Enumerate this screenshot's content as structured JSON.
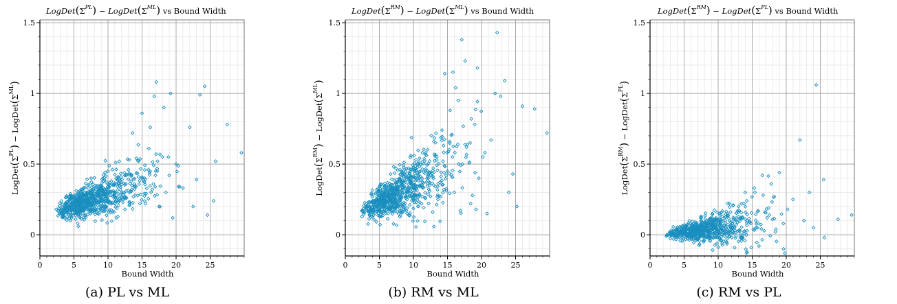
{
  "panels": [
    {
      "title_parts": [
        "LogDet",
        "(",
        "Σ",
        "PL",
        ")",
        " − ",
        "LogDet",
        "(",
        "Σ",
        "ML",
        ")",
        " vs Bound  Width"
      ],
      "ylabel_parts": [
        "LogDet",
        "(",
        "Σ",
        "PL",
        ")",
        " − ",
        "LogDet",
        "(",
        "Σ",
        "ML",
        ")"
      ],
      "xlabel": "Bound Width",
      "caption": "(a) PL vs ML"
    },
    {
      "title_parts": [
        "LogDet",
        "(",
        "Σ",
        "RM",
        ")",
        " − ",
        "LogDet",
        "(",
        "Σ",
        "ML",
        ")",
        " vs Bound  Width"
      ],
      "ylabel_parts": [
        "LogDet",
        "(",
        "Σ",
        "RM",
        ")",
        " − ",
        "LogDet",
        "(",
        "Σ",
        "ML",
        ")"
      ],
      "xlabel": "Bound Width",
      "caption": "(b) RM vs ML"
    },
    {
      "title_parts": [
        "LogDet",
        "(",
        "Σ",
        "RM",
        ")",
        " − ",
        "LogDet",
        "(",
        "Σ",
        "PL",
        ")",
        " vs Bound  Width"
      ],
      "ylabel_parts": [
        "LogDet",
        "(",
        "Σ",
        "RM",
        ")",
        " − ",
        "LogDet",
        "(",
        "Σ",
        "PL",
        ")"
      ],
      "xlabel": "Bound Width",
      "caption": "(c) RM vs PL"
    }
  ],
  "chart_data": [
    {
      "type": "scatter",
      "xlabel": "Bound Width",
      "xlim": [
        0,
        30
      ],
      "ylim": [
        -0.15,
        1.52
      ],
      "xticks": [
        0,
        5,
        10,
        15,
        20,
        25
      ],
      "yticks": [
        0,
        0.5,
        1,
        1.5
      ],
      "grid": true,
      "marker_color": "#1a8fbf",
      "series": [
        {
          "values": [
            [
              2.4,
              0.18
            ],
            [
              3.1,
              0.15
            ],
            [
              3.8,
              0.2
            ],
            [
              4.5,
              0.19
            ],
            [
              5,
              0.25
            ],
            [
              5.4,
              0.16
            ],
            [
              6,
              0.22
            ],
            [
              6.5,
              0.28
            ],
            [
              7,
              0.2
            ],
            [
              7.5,
              0.31
            ],
            [
              8,
              0.24
            ],
            [
              8.5,
              0.15
            ],
            [
              9,
              0.33
            ],
            [
              9.4,
              0.2
            ],
            [
              10,
              0.27
            ],
            [
              10.5,
              0.38
            ],
            [
              11,
              0.22
            ],
            [
              11.5,
              0.41
            ],
            [
              12,
              0.3
            ],
            [
              12.5,
              0.18
            ],
            [
              13,
              0.46
            ],
            [
              13.5,
              0.35
            ],
            [
              14,
              0.28
            ],
            [
              14.5,
              0.52
            ],
            [
              15,
              0.4
            ],
            [
              15.5,
              0.22
            ],
            [
              16,
              0.61
            ],
            [
              16.5,
              0.32
            ],
            [
              17,
              0.45
            ],
            [
              17.5,
              0.2
            ],
            [
              18,
              0.55
            ],
            [
              18.5,
              0.3
            ],
            [
              19,
              0.42
            ],
            [
              19.5,
              0.12
            ],
            [
              20,
              0.5
            ],
            [
              21,
              0.33
            ],
            [
              22,
              0.76
            ],
            [
              22.5,
              0.2
            ],
            [
              23,
              0.39
            ],
            [
              23.5,
              0.99
            ],
            [
              24.2,
              1.05
            ],
            [
              24.6,
              0.14
            ],
            [
              25.5,
              0.24
            ],
            [
              25.8,
              0.52
            ],
            [
              27.5,
              0.78
            ],
            [
              29.6,
              0.58
            ],
            [
              17.1,
              1.08
            ],
            [
              19.2,
              1.0
            ],
            [
              15,
              0.86
            ],
            [
              16.8,
              0.98
            ],
            [
              13.6,
              0.72
            ],
            [
              18.2,
              0.9
            ]
          ]
        }
      ]
    },
    {
      "type": "scatter",
      "xlabel": "Bound Width",
      "xlim": [
        0,
        30
      ],
      "ylim": [
        -0.15,
        1.52
      ],
      "xticks": [
        0,
        5,
        10,
        15,
        20,
        25
      ],
      "yticks": [
        0,
        0.5,
        1,
        1.5
      ],
      "grid": true,
      "marker_color": "#1a8fbf",
      "series": [
        {
          "values": [
            [
              2.4,
              0.17
            ],
            [
              3.2,
              0.2
            ],
            [
              4,
              0.16
            ],
            [
              4.6,
              0.24
            ],
            [
              5.2,
              0.19
            ],
            [
              5.8,
              0.28
            ],
            [
              6.3,
              0.15
            ],
            [
              7,
              0.33
            ],
            [
              7.6,
              0.22
            ],
            [
              8.2,
              0.38
            ],
            [
              8.8,
              0.18
            ],
            [
              9.4,
              0.44
            ],
            [
              10,
              0.3
            ],
            [
              10.6,
              0.5
            ],
            [
              11.2,
              0.22
            ],
            [
              11.8,
              0.58
            ],
            [
              12.4,
              0.35
            ],
            [
              13,
              0.66
            ],
            [
              13.6,
              0.25
            ],
            [
              14.2,
              0.74
            ],
            [
              14.8,
              0.42
            ],
            [
              15.4,
              0.88
            ],
            [
              16,
              0.3
            ],
            [
              16.6,
              0.95
            ],
            [
              17.2,
              0.5
            ],
            [
              17.8,
              0.62
            ],
            [
              18.4,
              0.22
            ],
            [
              19,
              0.78
            ],
            [
              19.6,
              0.4
            ],
            [
              20.2,
              0.55
            ],
            [
              20.8,
              0.15
            ],
            [
              21.4,
              0.67
            ],
            [
              22,
              1.0
            ],
            [
              22.3,
              1.43
            ],
            [
              22.8,
              0.98
            ],
            [
              23.4,
              1.09
            ],
            [
              24,
              0.3
            ],
            [
              24.6,
              0.43
            ],
            [
              25.2,
              0.2
            ],
            [
              26,
              0.91
            ],
            [
              27.8,
              0.89
            ],
            [
              29.6,
              0.72
            ],
            [
              17.1,
              1.38
            ],
            [
              17.6,
              1.23
            ],
            [
              15.8,
              1.15
            ],
            [
              19.4,
              1.18
            ],
            [
              16.2,
              1.04
            ],
            [
              14.6,
              1.14
            ],
            [
              18.5,
              0.82
            ],
            [
              20.5,
              0.58
            ]
          ]
        }
      ]
    },
    {
      "type": "scatter",
      "xlabel": "Bound Width",
      "xlim": [
        0,
        30
      ],
      "ylim": [
        -0.15,
        1.52
      ],
      "xticks": [
        0,
        5,
        10,
        15,
        20,
        25
      ],
      "yticks": [
        0,
        0.5,
        1,
        1.5
      ],
      "grid": true,
      "marker_color": "#1a8fbf",
      "series": [
        {
          "values": [
            [
              2.4,
              -0.01
            ],
            [
              3.2,
              0.01
            ],
            [
              4,
              -0.02
            ],
            [
              4.6,
              0.02
            ],
            [
              5.2,
              0
            ],
            [
              5.8,
              0.04
            ],
            [
              6.4,
              -0.03
            ],
            [
              7,
              0.06
            ],
            [
              7.6,
              0.01
            ],
            [
              8.2,
              0.08
            ],
            [
              8.8,
              -0.04
            ],
            [
              9.4,
              0.1
            ],
            [
              10,
              0.02
            ],
            [
              10.6,
              0.13
            ],
            [
              11.2,
              -0.05
            ],
            [
              11.8,
              0.16
            ],
            [
              12.4,
              0.05
            ],
            [
              13,
              0.2
            ],
            [
              13.6,
              -0.02
            ],
            [
              14.2,
              0.24
            ],
            [
              14.8,
              0.08
            ],
            [
              15.4,
              0.3
            ],
            [
              16,
              -0.08
            ],
            [
              16.6,
              0.28
            ],
            [
              17.2,
              0.12
            ],
            [
              17.8,
              0.36
            ],
            [
              18.4,
              0.02
            ],
            [
              19,
              0.44
            ],
            [
              19.6,
              -0.1
            ],
            [
              20.2,
              0.18
            ],
            [
              21,
              0.25
            ],
            [
              22,
              0.67
            ],
            [
              22.6,
              0.1
            ],
            [
              23.4,
              0.3
            ],
            [
              24,
              0.05
            ],
            [
              24.4,
              1.06
            ],
            [
              25.5,
              0.39
            ],
            [
              25.6,
              -0.02
            ],
            [
              27.6,
              0.11
            ],
            [
              29.6,
              0.14
            ],
            [
              19.8,
              -0.13
            ],
            [
              16.5,
              0.42
            ],
            [
              15.3,
              0.33
            ]
          ]
        }
      ]
    }
  ]
}
